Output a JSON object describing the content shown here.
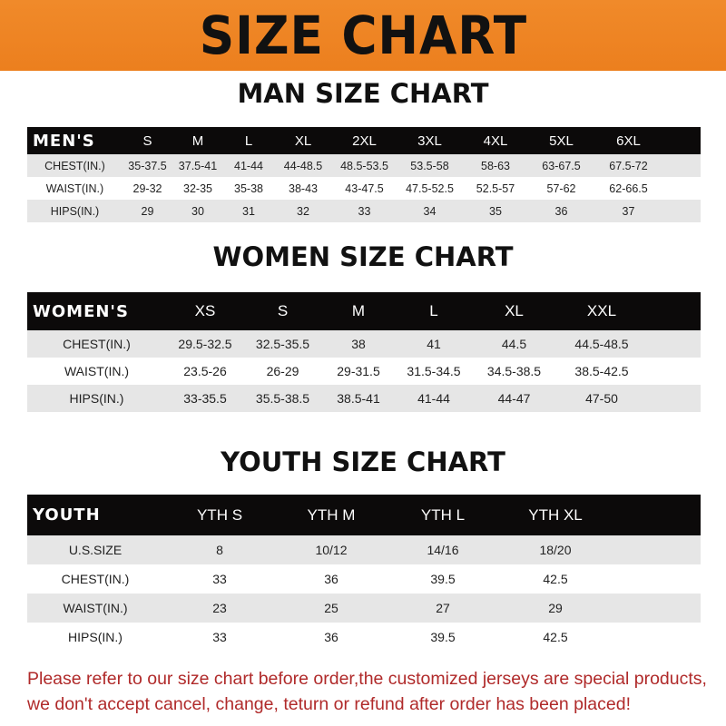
{
  "banner": "SIZE CHART",
  "men": {
    "title": "MAN SIZE CHART",
    "header": [
      "MEN'S",
      "S",
      "M",
      "L",
      "XL",
      "2XL",
      "3XL",
      "4XL",
      "5XL",
      "6XL"
    ],
    "rows": [
      [
        "CHEST(IN.)",
        "35-37.5",
        "37.5-41",
        "41-44",
        "44-48.5",
        "48.5-53.5",
        "53.5-58",
        "58-63",
        "63-67.5",
        "67.5-72"
      ],
      [
        "WAIST(IN.)",
        "29-32",
        "32-35",
        "35-38",
        "38-43",
        "43-47.5",
        "47.5-52.5",
        "52.5-57",
        "57-62",
        "62-66.5"
      ],
      [
        "HIPS(IN.)",
        "29",
        "30",
        "31",
        "32",
        "33",
        "34",
        "35",
        "36",
        "37"
      ]
    ]
  },
  "women": {
    "title": "WOMEN SIZE CHART",
    "header": [
      "WOMEN'S",
      "XS",
      "S",
      "M",
      "L",
      "XL",
      "XXL"
    ],
    "rows": [
      [
        "CHEST(IN.)",
        "29.5-32.5",
        "32.5-35.5",
        "38",
        "41",
        "44.5",
        "44.5-48.5"
      ],
      [
        "WAIST(IN.)",
        "23.5-26",
        "26-29",
        "29-31.5",
        "31.5-34.5",
        "34.5-38.5",
        "38.5-42.5"
      ],
      [
        "HIPS(IN.)",
        "33-35.5",
        "35.5-38.5",
        "38.5-41",
        "41-44",
        "44-47",
        "47-50"
      ]
    ]
  },
  "youth": {
    "title": "YOUTH SIZE CHART",
    "header": [
      "YOUTH",
      "YTH S",
      "YTH M",
      "YTH L",
      "YTH XL"
    ],
    "rows": [
      [
        "U.S.SIZE",
        "8",
        "10/12",
        "14/16",
        "18/20"
      ],
      [
        "CHEST(IN.)",
        "33",
        "36",
        "39.5",
        "42.5"
      ],
      [
        "WAIST(IN.)",
        "23",
        "25",
        "27",
        "29"
      ],
      [
        "HIPS(IN.)",
        "33",
        "36",
        "39.5",
        "42.5"
      ]
    ]
  },
  "note": [
    "Please refer to our size chart before order,the customized jerseys are special products,",
    "we don't accept cancel, change, teturn or refund after order has been placed!"
  ],
  "colors": {
    "banner": "#ec7f1e",
    "header_row": "#0c0a0a",
    "note": "#b02a2a"
  }
}
